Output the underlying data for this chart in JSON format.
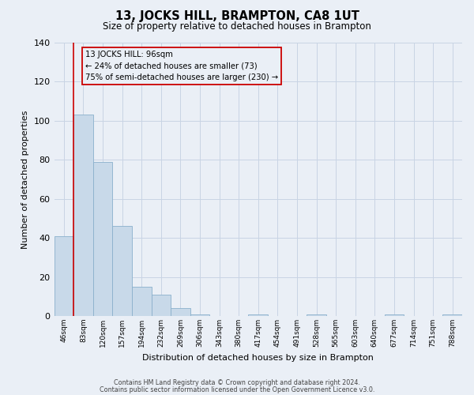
{
  "title": "13, JOCKS HILL, BRAMPTON, CA8 1UT",
  "subtitle": "Size of property relative to detached houses in Brampton",
  "xlabel": "Distribution of detached houses by size in Brampton",
  "ylabel": "Number of detached properties",
  "bar_values": [
    41,
    103,
    79,
    46,
    15,
    11,
    4,
    1,
    0,
    0,
    1,
    0,
    0,
    1,
    0,
    0,
    0,
    1,
    0,
    0,
    1
  ],
  "x_labels": [
    "46sqm",
    "83sqm",
    "120sqm",
    "157sqm",
    "194sqm",
    "232sqm",
    "269sqm",
    "306sqm",
    "343sqm",
    "380sqm",
    "417sqm",
    "454sqm",
    "491sqm",
    "528sqm",
    "565sqm",
    "603sqm",
    "640sqm",
    "677sqm",
    "714sqm",
    "751sqm",
    "788sqm"
  ],
  "bar_color": "#c8d9e9",
  "bar_edge_color": "#8ab0cc",
  "grid_color": "#c8d4e4",
  "background_color": "#eaeff6",
  "vline_color": "#cc0000",
  "vline_x": 1.0,
  "annotation_text": "13 JOCKS HILL: 96sqm\n← 24% of detached houses are smaller (73)\n75% of semi-detached houses are larger (230) →",
  "annotation_box_edge_color": "#cc0000",
  "ylim": [
    0,
    140
  ],
  "yticks": [
    0,
    20,
    40,
    60,
    80,
    100,
    120,
    140
  ],
  "footer1": "Contains HM Land Registry data © Crown copyright and database right 2024.",
  "footer2": "Contains public sector information licensed under the Open Government Licence v3.0."
}
